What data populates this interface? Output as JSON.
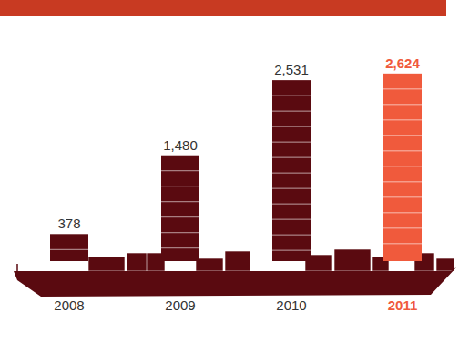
{
  "chart_data": {
    "type": "bar",
    "categories": [
      "2008",
      "2009",
      "2010",
      "2011"
    ],
    "values": [
      378,
      1480,
      2531,
      2624
    ],
    "value_labels": [
      "378",
      "1,480",
      "2,531",
      "2,624"
    ],
    "colors": [
      "#5a0a10",
      "#5a0a10",
      "#5a0a10",
      "#f05a3c"
    ],
    "ylim": [
      0,
      2800
    ],
    "data_labels": true,
    "tick_labels": "x",
    "grid": false
  }
}
